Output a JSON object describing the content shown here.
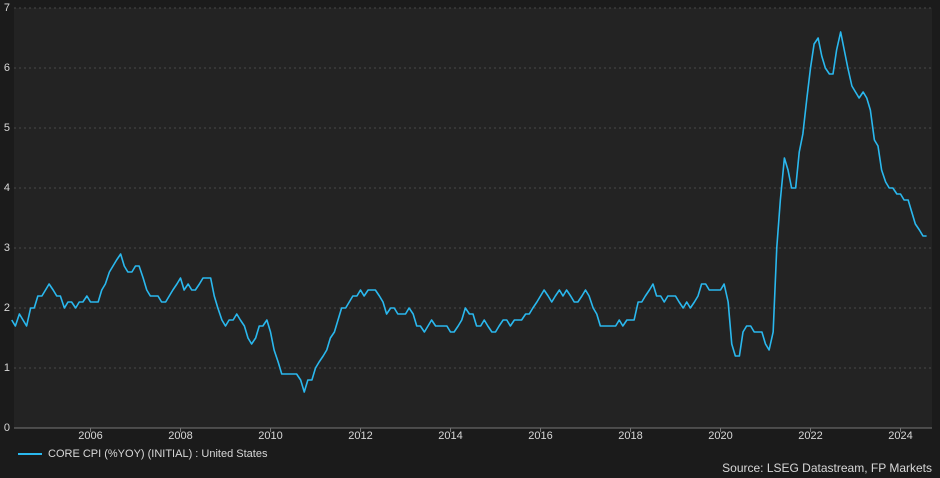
{
  "chart_data": {
    "type": "line",
    "x": [
      2004.25,
      2004.33,
      2004.42,
      2004.5,
      2004.58,
      2004.67,
      2004.75,
      2004.83,
      2004.92,
      2005,
      2005.08,
      2005.17,
      2005.25,
      2005.33,
      2005.42,
      2005.5,
      2005.58,
      2005.67,
      2005.75,
      2005.83,
      2005.92,
      2006,
      2006.08,
      2006.17,
      2006.25,
      2006.33,
      2006.42,
      2006.5,
      2006.58,
      2006.67,
      2006.75,
      2006.83,
      2006.92,
      2007,
      2007.08,
      2007.17,
      2007.25,
      2007.33,
      2007.42,
      2007.5,
      2007.58,
      2007.67,
      2007.75,
      2007.83,
      2007.92,
      2008,
      2008.08,
      2008.17,
      2008.25,
      2008.33,
      2008.42,
      2008.5,
      2008.58,
      2008.67,
      2008.75,
      2008.83,
      2008.92,
      2009,
      2009.08,
      2009.17,
      2009.25,
      2009.33,
      2009.42,
      2009.5,
      2009.58,
      2009.67,
      2009.75,
      2009.83,
      2009.92,
      2010,
      2010.08,
      2010.17,
      2010.25,
      2010.33,
      2010.42,
      2010.5,
      2010.58,
      2010.67,
      2010.75,
      2010.83,
      2010.92,
      2011,
      2011.08,
      2011.17,
      2011.25,
      2011.33,
      2011.42,
      2011.5,
      2011.58,
      2011.67,
      2011.75,
      2011.83,
      2011.92,
      2012,
      2012.08,
      2012.17,
      2012.25,
      2012.33,
      2012.42,
      2012.5,
      2012.58,
      2012.67,
      2012.75,
      2012.83,
      2012.92,
      2013,
      2013.08,
      2013.17,
      2013.25,
      2013.33,
      2013.42,
      2013.5,
      2013.58,
      2013.67,
      2013.75,
      2013.83,
      2013.92,
      2014,
      2014.08,
      2014.17,
      2014.25,
      2014.33,
      2014.42,
      2014.5,
      2014.58,
      2014.67,
      2014.75,
      2014.83,
      2014.92,
      2015,
      2015.08,
      2015.17,
      2015.25,
      2015.33,
      2015.42,
      2015.5,
      2015.58,
      2015.67,
      2015.75,
      2015.83,
      2015.92,
      2016,
      2016.08,
      2016.17,
      2016.25,
      2016.33,
      2016.42,
      2016.5,
      2016.58,
      2016.67,
      2016.75,
      2016.83,
      2016.92,
      2017,
      2017.08,
      2017.17,
      2017.25,
      2017.33,
      2017.42,
      2017.5,
      2017.58,
      2017.67,
      2017.75,
      2017.83,
      2017.92,
      2018,
      2018.08,
      2018.17,
      2018.25,
      2018.33,
      2018.42,
      2018.5,
      2018.58,
      2018.67,
      2018.75,
      2018.83,
      2018.92,
      2019,
      2019.08,
      2019.17,
      2019.25,
      2019.33,
      2019.42,
      2019.5,
      2019.58,
      2019.67,
      2019.75,
      2019.83,
      2019.92,
      2020,
      2020.08,
      2020.17,
      2020.25,
      2020.33,
      2020.42,
      2020.5,
      2020.58,
      2020.67,
      2020.75,
      2020.83,
      2020.92,
      2021,
      2021.08,
      2021.17,
      2021.25,
      2021.33,
      2021.42,
      2021.5,
      2021.58,
      2021.67,
      2021.75,
      2021.83,
      2021.92,
      2022,
      2022.08,
      2022.17,
      2022.25,
      2022.33,
      2022.42,
      2022.5,
      2022.58,
      2022.67,
      2022.75,
      2022.83,
      2022.92,
      2023,
      2023.08,
      2023.17,
      2023.25,
      2023.33,
      2023.42,
      2023.5,
      2023.58,
      2023.67,
      2023.75,
      2023.83,
      2023.92,
      2024,
      2024.08,
      2024.17,
      2024.25,
      2024.33,
      2024.42,
      2024.5,
      2024.58
    ],
    "series": [
      {
        "name": "CORE CPI (%YOY) (INITIAL) : United States",
        "color": "#2ab8ee",
        "values": [
          1.8,
          1.7,
          1.9,
          1.8,
          1.7,
          2.0,
          2.0,
          2.2,
          2.2,
          2.3,
          2.4,
          2.3,
          2.2,
          2.2,
          2.0,
          2.1,
          2.1,
          2.0,
          2.1,
          2.1,
          2.2,
          2.1,
          2.1,
          2.1,
          2.3,
          2.4,
          2.6,
          2.7,
          2.8,
          2.9,
          2.7,
          2.6,
          2.6,
          2.7,
          2.7,
          2.5,
          2.3,
          2.2,
          2.2,
          2.2,
          2.1,
          2.1,
          2.2,
          2.3,
          2.4,
          2.5,
          2.3,
          2.4,
          2.3,
          2.3,
          2.4,
          2.5,
          2.5,
          2.5,
          2.2,
          2.0,
          1.8,
          1.7,
          1.8,
          1.8,
          1.9,
          1.8,
          1.7,
          1.5,
          1.4,
          1.5,
          1.7,
          1.7,
          1.8,
          1.6,
          1.3,
          1.1,
          0.9,
          0.9,
          0.9,
          0.9,
          0.9,
          0.8,
          0.6,
          0.8,
          0.8,
          1.0,
          1.1,
          1.2,
          1.3,
          1.5,
          1.6,
          1.8,
          2.0,
          2.0,
          2.1,
          2.2,
          2.2,
          2.3,
          2.2,
          2.3,
          2.3,
          2.3,
          2.2,
          2.1,
          1.9,
          2.0,
          2.0,
          1.9,
          1.9,
          1.9,
          2.0,
          1.9,
          1.7,
          1.7,
          1.6,
          1.7,
          1.8,
          1.7,
          1.7,
          1.7,
          1.7,
          1.6,
          1.6,
          1.7,
          1.8,
          2.0,
          1.9,
          1.9,
          1.7,
          1.7,
          1.8,
          1.7,
          1.6,
          1.6,
          1.7,
          1.8,
          1.8,
          1.7,
          1.8,
          1.8,
          1.8,
          1.9,
          1.9,
          2.0,
          2.1,
          2.2,
          2.3,
          2.2,
          2.1,
          2.2,
          2.3,
          2.2,
          2.3,
          2.2,
          2.1,
          2.1,
          2.2,
          2.3,
          2.2,
          2.0,
          1.9,
          1.7,
          1.7,
          1.7,
          1.7,
          1.7,
          1.8,
          1.7,
          1.8,
          1.8,
          1.8,
          2.1,
          2.1,
          2.2,
          2.3,
          2.4,
          2.2,
          2.2,
          2.1,
          2.2,
          2.2,
          2.2,
          2.1,
          2.0,
          2.1,
          2.0,
          2.1,
          2.2,
          2.4,
          2.4,
          2.3,
          2.3,
          2.3,
          2.3,
          2.4,
          2.1,
          1.4,
          1.2,
          1.2,
          1.6,
          1.7,
          1.7,
          1.6,
          1.6,
          1.6,
          1.4,
          1.3,
          1.6,
          3.0,
          3.8,
          4.5,
          4.3,
          4.0,
          4.0,
          4.6,
          4.9,
          5.5,
          6.0,
          6.4,
          6.5,
          6.2,
          6.0,
          5.9,
          5.9,
          6.3,
          6.6,
          6.3,
          6.0,
          5.7,
          5.6,
          5.5,
          5.6,
          5.5,
          5.3,
          4.8,
          4.7,
          4.3,
          4.1,
          4.0,
          4.0,
          3.9,
          3.9,
          3.8,
          3.8,
          3.6,
          3.4,
          3.3,
          3.2,
          3.2
        ]
      }
    ],
    "xlim": [
      2004.3,
      2024.7
    ],
    "xticks": [
      2006,
      2008,
      2010,
      2012,
      2014,
      2016,
      2018,
      2020,
      2022,
      2024
    ],
    "ylim": [
      0,
      7
    ],
    "yticks": [
      0,
      1,
      2,
      3,
      4,
      5,
      6,
      7
    ],
    "grid": true,
    "source": "Source: LSEG Datastream, FP Markets"
  }
}
